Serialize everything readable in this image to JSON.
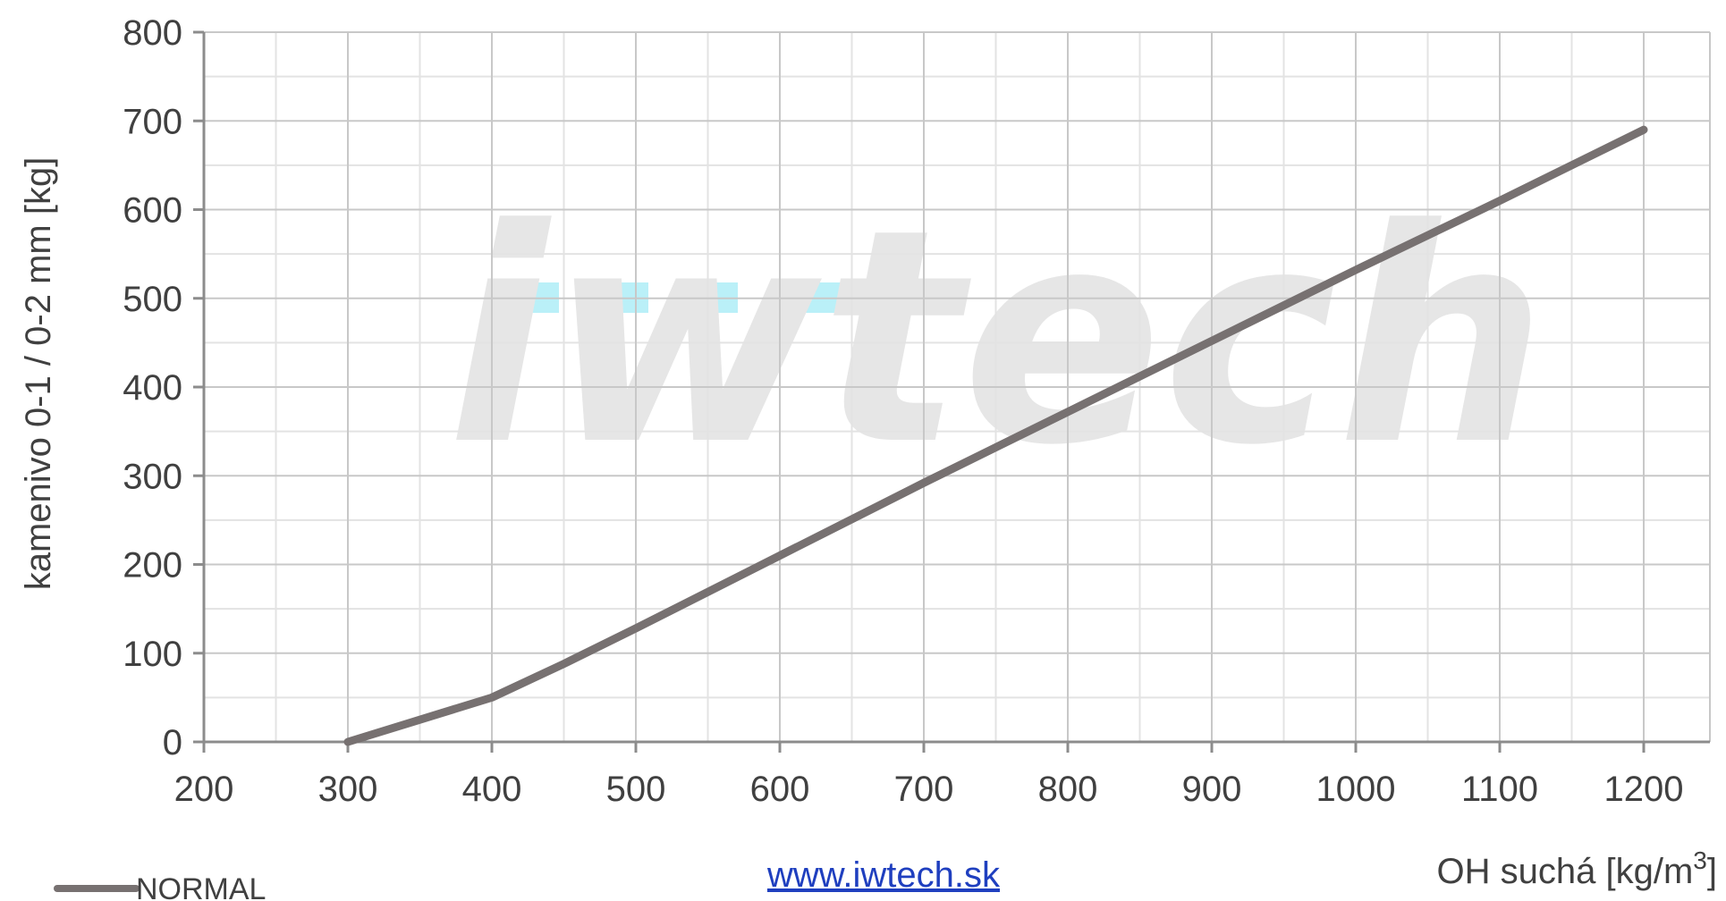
{
  "chart_data": {
    "type": "line",
    "title": "",
    "xlabel": "OH suchá [kg/m",
    "xlabel_sup": "3",
    "xlabel_suffix": "]",
    "ylabel": "kamenivo 0-1 / 0-2 mm [kg]",
    "xlim": [
      200,
      1200
    ],
    "ylim": [
      0,
      800
    ],
    "x_ticks": [
      200,
      300,
      400,
      500,
      600,
      700,
      800,
      900,
      1000,
      1100,
      1200
    ],
    "y_ticks": [
      0,
      100,
      200,
      300,
      400,
      500,
      600,
      700,
      800
    ],
    "x_tick_labels": [
      "200",
      "300",
      "400",
      "500",
      "600",
      "700",
      "800",
      "900",
      "1000",
      "1100",
      "1200"
    ],
    "y_tick_labels": [
      "0",
      "100",
      "200",
      "300",
      "400",
      "500",
      "600",
      "700",
      "800"
    ],
    "grid": true,
    "legend_position": "bottom-left",
    "series": [
      {
        "name": "NORMAL",
        "color": "#777171",
        "x": [
          300,
          350,
          400,
          450,
          500,
          600,
          700,
          800,
          900,
          1000,
          1100,
          1200
        ],
        "y": [
          0,
          25,
          50,
          88,
          128,
          210,
          292,
          372,
          452,
          532,
          610,
          690
        ]
      }
    ]
  },
  "watermark": {
    "text": "iwtech",
    "accent_color": "#66ddf0"
  },
  "footer": {
    "link_text": "www.iwtech.sk"
  }
}
